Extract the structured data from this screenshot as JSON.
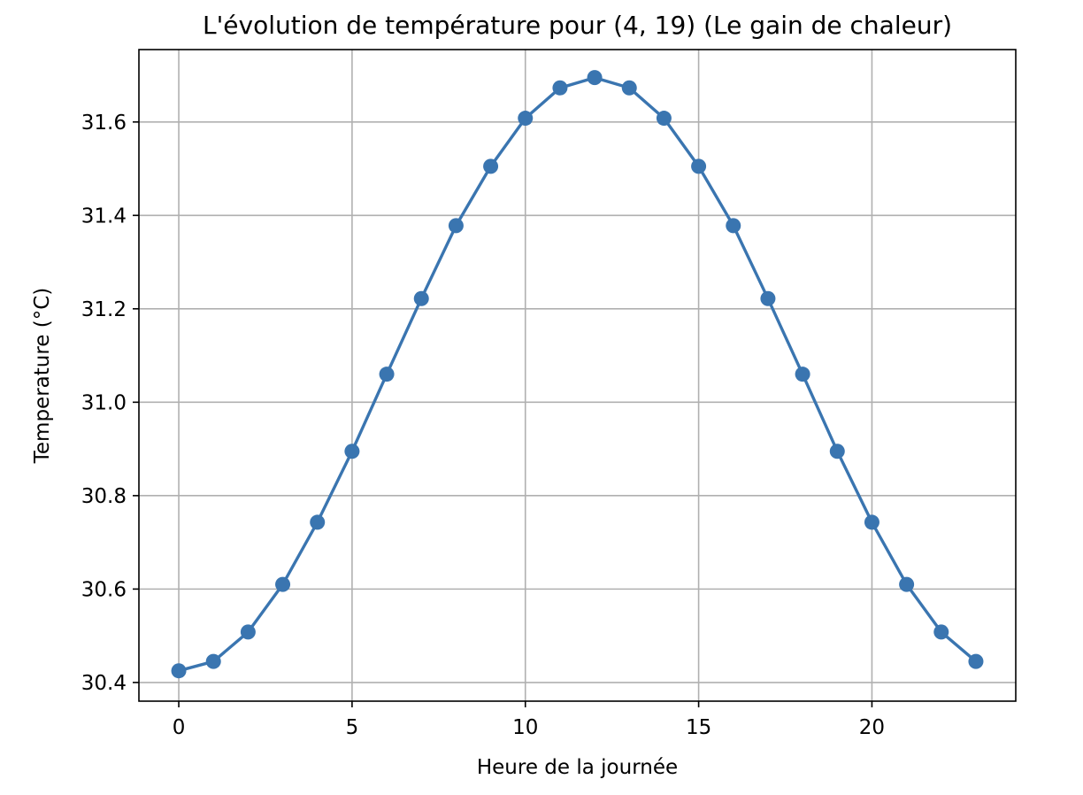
{
  "chart_data": {
    "type": "line",
    "title": "L'évolution de température pour (4, 19) (Le gain de chaleur)",
    "xlabel": "Heure de la journée",
    "ylabel": "Temperature (°C)",
    "xlim": [
      -1.15,
      24.15
    ],
    "ylim": [
      30.36,
      31.755
    ],
    "xticks": [
      0,
      5,
      10,
      15,
      20
    ],
    "xtick_labels": [
      "0",
      "5",
      "10",
      "15",
      "20"
    ],
    "yticks": [
      30.4,
      30.6,
      30.8,
      31.0,
      31.2,
      31.4,
      31.6
    ],
    "ytick_labels": [
      "30.4",
      "30.6",
      "30.8",
      "31.0",
      "31.2",
      "31.4",
      "31.6"
    ],
    "grid": true,
    "marker": "circle",
    "series": [
      {
        "color": "#3a75b0",
        "x": [
          0,
          1,
          2,
          3,
          4,
          5,
          6,
          7,
          8,
          9,
          10,
          11,
          12,
          13,
          14,
          15,
          16,
          17,
          18,
          19,
          20,
          21,
          22,
          23
        ],
        "y": [
          30.425,
          30.445,
          30.508,
          30.61,
          30.743,
          30.895,
          31.06,
          31.222,
          31.378,
          31.505,
          31.608,
          31.673,
          31.695,
          31.673,
          31.608,
          31.505,
          31.378,
          31.222,
          31.06,
          30.895,
          30.743,
          30.61,
          30.508,
          30.445
        ]
      }
    ]
  }
}
